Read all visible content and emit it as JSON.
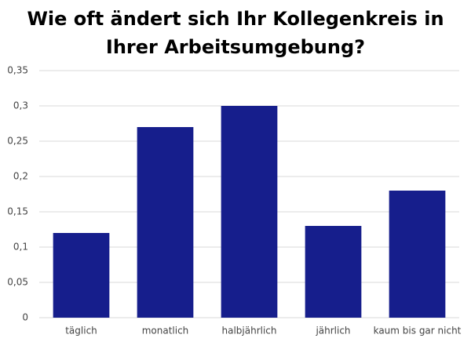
{
  "chart_data": {
    "type": "bar",
    "title": "Wie oft ändert sich Ihr Kollegenkreis in Ihrer Arbeitsumgebung?",
    "categories": [
      "täglich",
      "monatlich",
      "halbjährlich",
      "jährlich",
      "kaum bis gar nicht"
    ],
    "values": [
      0.12,
      0.27,
      0.3,
      0.13,
      0.18
    ],
    "color": "#161e8c",
    "ylim": [
      0,
      0.35
    ],
    "yticks": [
      0,
      {
        "value": 0.05,
        "label": "0,05"
      },
      {
        "value": 0.1,
        "label": "0,1"
      },
      {
        "value": 0.15,
        "label": "0,15"
      },
      {
        "value": 0.2,
        "label": "0,2"
      },
      {
        "value": 0.25,
        "label": "0,25"
      },
      {
        "value": 0.3,
        "label": "0,3"
      },
      {
        "value": 0.35,
        "label": "0,35"
      }
    ],
    "grid": true
  }
}
